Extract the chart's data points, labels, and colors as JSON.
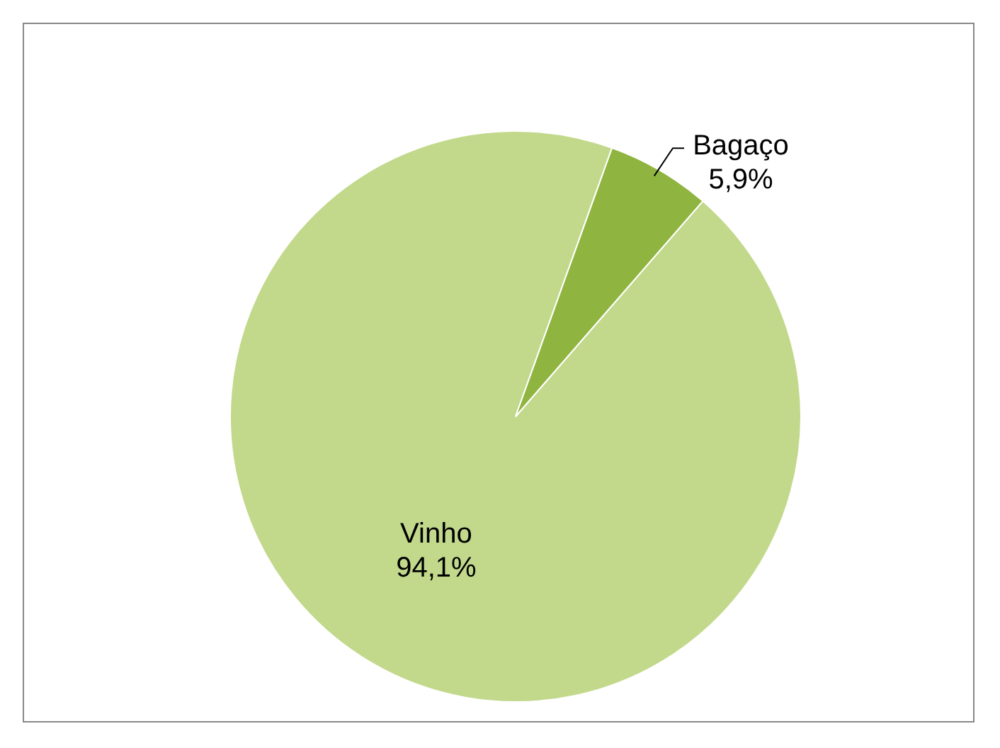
{
  "chart_data": {
    "type": "pie",
    "categories": [
      "Vinho",
      "Bagaço"
    ],
    "values": [
      94.1,
      5.9
    ],
    "colors": [
      "#c2d98c",
      "#8fb440"
    ],
    "value_labels": [
      "94,1%",
      "5,9%"
    ]
  }
}
